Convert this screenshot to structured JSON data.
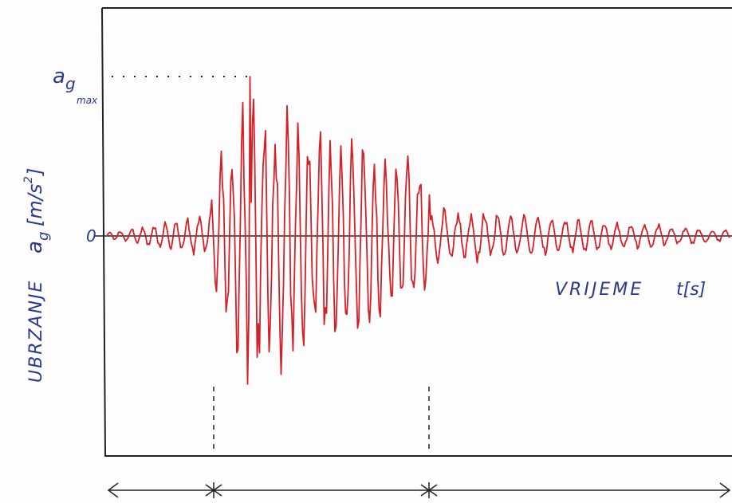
{
  "peak": {
    "symbol": "a",
    "sub": "g",
    "subsub": "max"
  },
  "zero": "0",
  "y_axis": {
    "label": "UBRZANJE",
    "symbol": "a",
    "symbol_sub": "g",
    "unit": "[m/s",
    "unit_sup": "2",
    "unit_close": "]"
  },
  "x_axis": {
    "label": "VRIJEME",
    "symbol": "t[s]"
  }
}
